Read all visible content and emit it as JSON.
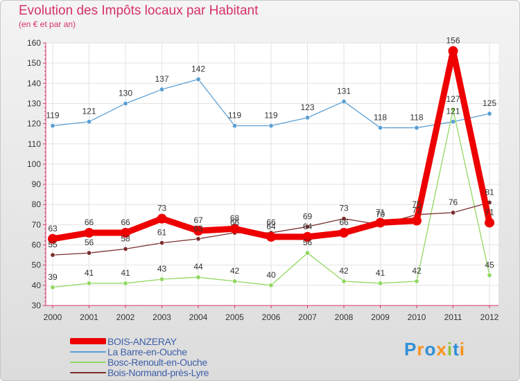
{
  "chart_data": {
    "type": "line",
    "title": "Evolution des Impôts locaux par Habitant",
    "subtitle": "(en € et par an)",
    "xlabel": "",
    "ylabel": "",
    "ylim": [
      30,
      160
    ],
    "yticks": [
      "30",
      "40",
      "50",
      "60",
      "70",
      "80",
      "90",
      "100",
      "110",
      "120",
      "130",
      "140",
      "150",
      "160"
    ],
    "categories": [
      "2000",
      "2001",
      "2002",
      "2003",
      "2004",
      "2005",
      "2006",
      "2007",
      "2008",
      "2009",
      "2010",
      "2011",
      "2012"
    ],
    "grid": true,
    "legend_position": "bottom-left",
    "series": [
      {
        "name": "BOIS-ANZERAY",
        "color": "#ee0000",
        "values": [
          63,
          66,
          66,
          73,
          67,
          68,
          64,
          64,
          66,
          71,
          72,
          156,
          71
        ],
        "labels": [
          "63",
          "66",
          "66",
          "73",
          "67",
          "68",
          "64",
          "64",
          "66",
          "71",
          "72",
          "156",
          "71"
        ]
      },
      {
        "name": "La Barre-en-Ouche",
        "color": "#5a9fd4",
        "values": [
          119,
          121,
          130,
          137,
          142,
          119,
          119,
          123,
          131,
          118,
          118,
          121,
          125
        ],
        "labels": [
          "119",
          "121",
          "130",
          "137",
          "142",
          "119",
          "119",
          "123",
          "131",
          "118",
          "118",
          "121",
          "125"
        ]
      },
      {
        "name": "Bosc-Renoult-en-Ouche",
        "color": "#90d860",
        "values": [
          39,
          41,
          41,
          43,
          44,
          42,
          40,
          56,
          42,
          41,
          42,
          127,
          45
        ],
        "labels": [
          "39",
          "41",
          "41",
          "43",
          "44",
          "42",
          "40",
          "56",
          "42",
          "41",
          "42",
          "127",
          "45"
        ]
      },
      {
        "name": "Bois-Normand-près-Lyre",
        "color": "#7a2d2d",
        "values": [
          55,
          56,
          58,
          61,
          63,
          66,
          66,
          69,
          73,
          70,
          75,
          76,
          81
        ],
        "labels": [
          "55",
          "56",
          "58",
          "61",
          "63",
          "66",
          "66",
          "69",
          "73",
          "70",
          "75",
          "76",
          "81"
        ]
      }
    ]
  },
  "logo": {
    "text": "Proxiti",
    "letters": [
      "P",
      "r",
      "o",
      "x",
      "i",
      "t",
      "i"
    ],
    "colors": [
      "#2f8fd6",
      "#f7941d",
      "#2f8fd6",
      "#f7941d",
      "#8cc63f",
      "#2f8fd6",
      "#f7941d"
    ]
  }
}
